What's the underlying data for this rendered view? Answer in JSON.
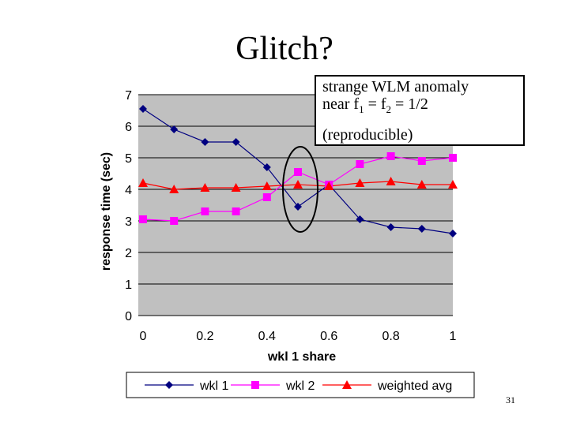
{
  "slide": {
    "title": "Glitch?",
    "page_number": "31"
  },
  "callout": {
    "line1": "strange WLM anomaly",
    "line2_prefix": "near f",
    "sub1": "1",
    "line2_mid": " = f",
    "sub2": "2",
    "line2_suffix": " = 1/2",
    "line3": "(reproducible)"
  },
  "colors": {
    "plot_bg": "#c0c0c0",
    "wkl1": "#000080",
    "wkl2": "#ff00ff",
    "weighted": "#ff0000"
  },
  "chart_data": {
    "type": "line",
    "xlabel": "wkl 1 share",
    "ylabel": "response time (sec)",
    "xlim": [
      0,
      1
    ],
    "ylim": [
      0,
      7
    ],
    "xticks": [
      "0",
      "0.2",
      "0.4",
      "0.6",
      "0.8",
      "1"
    ],
    "yticks": [
      "0",
      "1",
      "2",
      "3",
      "4",
      "5",
      "6",
      "7"
    ],
    "grid": "horizontal",
    "legend": "bottom",
    "x": [
      0,
      0.1,
      0.2,
      0.3,
      0.4,
      0.5,
      0.6,
      0.7,
      0.8,
      0.9,
      1.0
    ],
    "series": [
      {
        "name": "wkl 1",
        "marker": "diamond",
        "color": "#000080",
        "values": [
          6.55,
          5.9,
          5.5,
          5.5,
          4.7,
          3.45,
          4.15,
          3.05,
          2.8,
          2.75,
          2.6
        ]
      },
      {
        "name": "wkl 2",
        "marker": "square",
        "color": "#ff00ff",
        "values": [
          3.05,
          3.0,
          3.3,
          3.3,
          3.75,
          4.55,
          4.15,
          4.8,
          5.05,
          4.9,
          5.0
        ]
      },
      {
        "name": "weighted avg",
        "marker": "triangle",
        "color": "#ff0000",
        "values": [
          4.2,
          4.0,
          4.05,
          4.05,
          4.1,
          4.15,
          4.1,
          4.2,
          4.25,
          4.15,
          4.15
        ]
      }
    ]
  }
}
